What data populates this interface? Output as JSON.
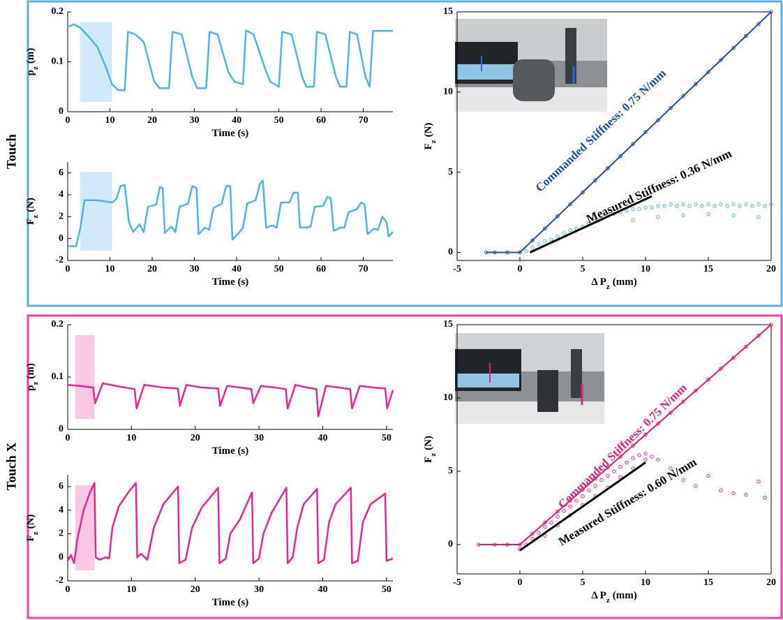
{
  "row_labels": [
    "Touch",
    "Touch X"
  ],
  "chart_data": [
    {
      "type": "line",
      "x_label": [
        "Time (s)"
      ],
      "y_label": [
        "p",
        "z",
        "(m)"
      ],
      "xlim": [
        0,
        77
      ],
      "ylim": [
        0,
        0.2
      ],
      "xticks": [
        0,
        10,
        20,
        30,
        40,
        50,
        60,
        70
      ],
      "yticks": [
        0,
        0.1,
        0.2
      ],
      "color": "#4db3e6",
      "highlight_x": [
        3,
        10.5
      ],
      "highlight_color": "#cfe9fa",
      "x": [
        0,
        1.5,
        3,
        5,
        7,
        9,
        10.5,
        12,
        13.5,
        14.3,
        16,
        18,
        20.5,
        21.8,
        24,
        24.8,
        27,
        29.5,
        30.7,
        32.8,
        33.6,
        35.5,
        38,
        39.5,
        41.5,
        42.2,
        44,
        47,
        48,
        50,
        50.8,
        53,
        55.5,
        56.5,
        58.3,
        59,
        61,
        63.5,
        64.5,
        66,
        66.8,
        68.5,
        70.5,
        71.5,
        72.3,
        77
      ],
      "values": [
        0.17,
        0.175,
        0.168,
        0.15,
        0.13,
        0.09,
        0.055,
        0.043,
        0.043,
        0.16,
        0.155,
        0.14,
        0.06,
        0.047,
        0.047,
        0.16,
        0.155,
        0.07,
        0.047,
        0.047,
        0.16,
        0.155,
        0.08,
        0.06,
        0.055,
        0.163,
        0.155,
        0.08,
        0.06,
        0.05,
        0.16,
        0.155,
        0.07,
        0.05,
        0.05,
        0.16,
        0.155,
        0.07,
        0.05,
        0.05,
        0.16,
        0.155,
        0.07,
        0.05,
        0.162,
        0.162
      ]
    },
    {
      "type": "line",
      "x_label": [
        "Time (s)"
      ],
      "y_label": [
        "F",
        "z",
        "(N)"
      ],
      "xlim": [
        0,
        77
      ],
      "ylim": [
        -2,
        7
      ],
      "xticks": [
        0,
        10,
        20,
        30,
        40,
        50,
        60,
        70
      ],
      "yticks": [
        -2,
        0,
        2,
        4,
        6
      ],
      "color": "#4db3e6",
      "highlight_x": [
        3,
        10.5
      ],
      "highlight_color": "#cfe9fa",
      "x": [
        0,
        2,
        3,
        4,
        7,
        10.5,
        11.5,
        12.5,
        13.5,
        14.5,
        15.5,
        17,
        18,
        19,
        21,
        21.8,
        22.5,
        23,
        24.5,
        25.5,
        26.5,
        28.5,
        29.5,
        30.5,
        31,
        32.5,
        33.5,
        34.5,
        36.5,
        37.5,
        38.5,
        39,
        40.5,
        41.5,
        42.5,
        44.5,
        45.5,
        46.2,
        47,
        48.5,
        49.5,
        50.5,
        52.5,
        53.5,
        54.5,
        55,
        56.5,
        57.5,
        58.5,
        60.5,
        61.5,
        62.3,
        63,
        64.5,
        65.5,
        66.5,
        68.5,
        69.5,
        70.3,
        71,
        72.5,
        73.5,
        74.5,
        75.5,
        76,
        77
      ],
      "values": [
        -0.7,
        -0.7,
        1.0,
        3.5,
        3.5,
        3.3,
        3.6,
        4.8,
        4.9,
        1.5,
        0.6,
        1.3,
        0.6,
        2.9,
        3.1,
        4.7,
        4.6,
        0.5,
        1.1,
        0.6,
        2.9,
        3.2,
        4.8,
        4.6,
        0.4,
        1.0,
        0.8,
        2.8,
        3.2,
        4.8,
        4.8,
        -0.1,
        0.5,
        1.0,
        3.2,
        3.5,
        5.0,
        5.3,
        1.0,
        1.2,
        1.0,
        3.3,
        3.3,
        4.2,
        4.2,
        1.0,
        1.0,
        1.1,
        2.9,
        3.0,
        3.8,
        3.7,
        0.7,
        1.0,
        1.0,
        2.4,
        2.7,
        3.3,
        3.1,
        0.4,
        0.9,
        0.8,
        2.0,
        1.5,
        0.2,
        0.6
      ]
    },
    {
      "type": "scatter",
      "x_label": [
        "Δ P",
        "z",
        "(mm)"
      ],
      "y_label": [
        "F",
        "z",
        "(N)"
      ],
      "xlim": [
        -5,
        20
      ],
      "ylim": [
        -0.5,
        15
      ],
      "xticks": [
        -5,
        0,
        5,
        10,
        15,
        20
      ],
      "yticks": [
        0,
        5,
        10,
        15
      ],
      "series": [
        {
          "color": "#1f4e9c",
          "connect": true,
          "x": [
            -2.7,
            -2,
            -1,
            0,
            1,
            2,
            3,
            4,
            5,
            6,
            7,
            8,
            9,
            10,
            11,
            12,
            13,
            14,
            15,
            16,
            17,
            18,
            19,
            20
          ],
          "values": [
            0,
            0,
            0,
            0,
            0.75,
            1.5,
            2.25,
            3,
            3.75,
            4.5,
            5.25,
            6,
            6.75,
            7.5,
            8.25,
            9,
            9.75,
            10.5,
            11.25,
            12,
            12.75,
            13.5,
            14.25,
            15
          ]
        },
        {
          "color": "#4db3e6",
          "connect": false,
          "x": [
            0,
            0.5,
            1,
            1.5,
            2,
            2.5,
            3,
            3.5,
            4,
            4.5,
            5,
            5.5,
            6,
            6.5,
            7,
            7.5,
            8,
            8.5,
            9,
            9.5,
            10,
            10.5,
            11,
            11.5,
            12,
            12.5,
            13,
            13.5,
            14,
            14.5,
            15,
            15.5,
            16,
            16.5,
            17,
            17.5,
            18,
            18.5,
            19,
            19.5,
            20,
            9,
            11,
            13,
            15,
            17,
            19
          ],
          "values": [
            -0.5,
            0.1,
            0.3,
            0.5,
            0.7,
            0.8,
            1.0,
            1.2,
            1.4,
            1.5,
            1.6,
            1.8,
            2.0,
            2.1,
            2.3,
            2.4,
            2.5,
            2.6,
            2.7,
            2.7,
            2.8,
            2.8,
            2.9,
            2.9,
            3.0,
            2.9,
            3.0,
            2.9,
            3.0,
            2.9,
            3.0,
            2.9,
            3.0,
            2.9,
            3.0,
            2.9,
            3.0,
            2.9,
            3.0,
            2.9,
            3.0,
            2.0,
            2.2,
            2.3,
            2.4,
            2.3,
            2.2
          ]
        }
      ],
      "fit_lines": [
        {
          "color": "#000000",
          "x": [
            0.8,
            10.5
          ],
          "values": [
            0,
            3.5
          ]
        }
      ],
      "annotations": [
        {
          "text": "Commanded Stiffness: 0.75 N/mm",
          "color": "#1a4fa0"
        },
        {
          "text": "Measured Stiffness: 0.36 N/mm",
          "color": "#000000"
        }
      ]
    },
    {
      "type": "line",
      "x_label": [
        "Time (s)"
      ],
      "y_label": [
        "p",
        "z",
        "(m)"
      ],
      "xlim": [
        0,
        51
      ],
      "ylim": [
        0,
        0.2
      ],
      "xticks": [
        0,
        10,
        20,
        30,
        40,
        50
      ],
      "yticks": [
        0,
        0.1,
        0.2
      ],
      "color": "#e8239a",
      "highlight_x": [
        1.2,
        4.2
      ],
      "highlight_color": "#f9c6e4",
      "x": [
        0,
        2,
        4,
        4.3,
        5.5,
        8,
        10.5,
        10.8,
        12,
        15,
        17.3,
        17.6,
        18.6,
        21,
        23.6,
        23.9,
        25,
        27,
        28.8,
        29.1,
        30.3,
        32.5,
        34.2,
        34.5,
        35.7,
        37.5,
        39,
        39.3,
        40.5,
        42.5,
        44.3,
        44.6,
        45.8,
        48,
        49.8,
        50.1,
        51
      ],
      "values": [
        0.085,
        0.083,
        0.08,
        0.05,
        0.088,
        0.082,
        0.077,
        0.04,
        0.085,
        0.08,
        0.078,
        0.045,
        0.085,
        0.08,
        0.078,
        0.045,
        0.083,
        0.08,
        0.077,
        0.05,
        0.083,
        0.08,
        0.077,
        0.04,
        0.085,
        0.08,
        0.077,
        0.025,
        0.083,
        0.08,
        0.077,
        0.04,
        0.083,
        0.08,
        0.078,
        0.04,
        0.075
      ]
    },
    {
      "type": "line",
      "x_label": [
        "Time (s)"
      ],
      "y_label": [
        "F",
        "z",
        "(N)"
      ],
      "xlim": [
        0,
        51
      ],
      "ylim": [
        -2,
        7
      ],
      "xticks": [
        0,
        10,
        20,
        30,
        40,
        50
      ],
      "yticks": [
        -2,
        0,
        2,
        4,
        6
      ],
      "color": "#e8239a",
      "highlight_x": [
        1.2,
        4.2
      ],
      "highlight_color": "#f9c6e4",
      "x": [
        0,
        0.5,
        1,
        1.5,
        2.5,
        3.5,
        4.2,
        4.4,
        5,
        6,
        6.5,
        7,
        8,
        9.5,
        10.7,
        10.9,
        11.5,
        12.5,
        13.5,
        15,
        17.3,
        17.5,
        18.5,
        19.5,
        21,
        23.6,
        23.8,
        24.8,
        25.5,
        27,
        28.9,
        29.1,
        30,
        30.7,
        32,
        34.3,
        34.5,
        35.3,
        36,
        37,
        39.1,
        39.3,
        40.2,
        41,
        42,
        44.4,
        44.6,
        45.5,
        46.3,
        47.5,
        49.8,
        50,
        51
      ],
      "values": [
        -0.3,
        0.2,
        -0.5,
        1.5,
        4,
        5.5,
        6.3,
        0,
        -0.2,
        0,
        -0.1,
        2.5,
        4.3,
        5.5,
        6.3,
        0,
        0.3,
        -0.2,
        2.5,
        4.5,
        6.0,
        -0.5,
        -0.2,
        2.5,
        4.2,
        5.9,
        -0.5,
        -0.1,
        2,
        3.2,
        5.5,
        -0.5,
        -0.1,
        2,
        3.8,
        5.9,
        -0.5,
        0,
        2.5,
        4.5,
        5.8,
        -0.5,
        -0.2,
        3,
        4.5,
        5.9,
        -0.5,
        -0.3,
        3,
        4.5,
        5.4,
        -0.3,
        -0.1
      ]
    },
    {
      "type": "scatter",
      "x_label": [
        "Δ P",
        "z",
        "(mm)"
      ],
      "y_label": [
        "F",
        "z",
        "(N)"
      ],
      "xlim": [
        -5,
        20
      ],
      "ylim": [
        -2,
        15
      ],
      "xticks": [
        -5,
        0,
        5,
        10,
        15,
        20
      ],
      "yticks": [
        0,
        5,
        10,
        15
      ],
      "series": [
        {
          "color": "#d81b7a",
          "connect": true,
          "x": [
            -3.3,
            -2,
            -1,
            0,
            1,
            2,
            3,
            4,
            5,
            6,
            7,
            8,
            9,
            10,
            11,
            12,
            13,
            14,
            15,
            16,
            17,
            18,
            19,
            20
          ],
          "values": [
            0,
            0,
            0,
            0,
            0.75,
            1.5,
            2.25,
            3,
            3.75,
            4.5,
            5.25,
            6,
            6.75,
            7.5,
            8.25,
            9,
            9.75,
            10.5,
            11.25,
            12,
            12.75,
            13.5,
            14.25,
            15
          ]
        },
        {
          "color": "#e8239a",
          "connect": false,
          "x": [
            0,
            0.5,
            1,
            1.5,
            2,
            2.5,
            3,
            3.5,
            4,
            4.5,
            5,
            5.5,
            6,
            6.5,
            7,
            7.5,
            8,
            8.5,
            9,
            9.5,
            10,
            10.5,
            11,
            2,
            3,
            4,
            5,
            6,
            7,
            8,
            9,
            10,
            12,
            13,
            14,
            15,
            16,
            17,
            18,
            19,
            19.5
          ],
          "values": [
            -0.3,
            0,
            0.4,
            0.8,
            1.2,
            1.5,
            1.9,
            2.3,
            2.6,
            3.0,
            3.3,
            3.7,
            4.0,
            4.4,
            4.7,
            5.0,
            5.3,
            5.6,
            5.9,
            6.1,
            6.2,
            6.0,
            5.8,
            0.6,
            1.3,
            2.0,
            2.7,
            3.3,
            3.9,
            4.6,
            5.2,
            5.8,
            5.2,
            4.4,
            4.0,
            4.7,
            3.7,
            3.5,
            3.4,
            4.3,
            3.2
          ]
        }
      ],
      "fit_lines": [
        {
          "color": "#000000",
          "x": [
            0,
            10
          ],
          "values": [
            -0.4,
            5.6
          ]
        }
      ],
      "annotations": [
        {
          "text": "Commanded Stiffness: 0.75 N/mm",
          "color": "#e0207f"
        },
        {
          "text": "Measured Stiffness: 0.60 N/mm",
          "color": "#000000"
        }
      ]
    }
  ]
}
